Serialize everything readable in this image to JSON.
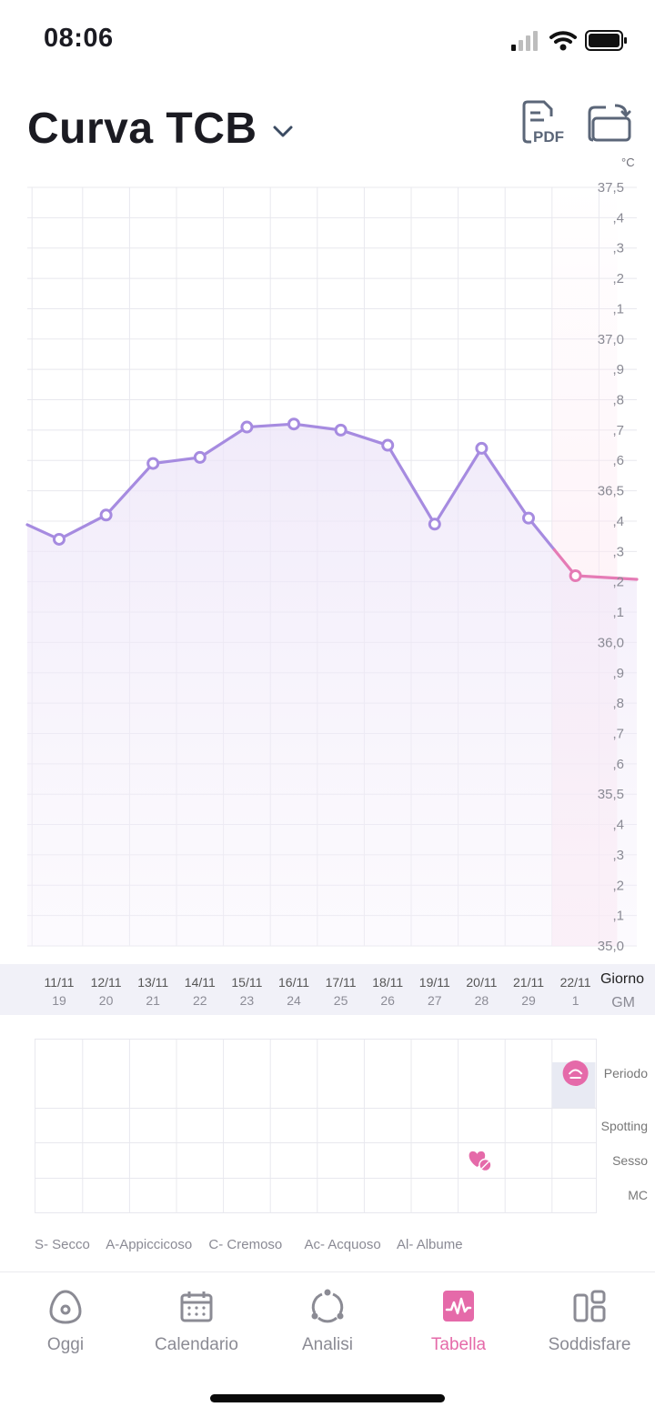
{
  "status": {
    "time": "08:06"
  },
  "header": {
    "title": "Curva TCB"
  },
  "toolbar": {
    "pdf_label": "PDF",
    "unit": "°C"
  },
  "colors": {
    "line": "#a68be0",
    "line_pink": "#e57bb5",
    "accent": "#e56aa9",
    "grid": "#e8e8ee"
  },
  "chart_data": {
    "type": "line",
    "title": "",
    "ylabel": "°C",
    "ylim": [
      35.0,
      37.5
    ],
    "y_ticks": [
      {
        "v": 37.5,
        "t": "37,5"
      },
      {
        "v": 37.4,
        "t": ",4"
      },
      {
        "v": 37.3,
        "t": ",3"
      },
      {
        "v": 37.2,
        "t": ",2"
      },
      {
        "v": 37.1,
        "t": ",1"
      },
      {
        "v": 37.0,
        "t": "37,0"
      },
      {
        "v": 36.9,
        "t": ",9"
      },
      {
        "v": 36.8,
        "t": ",8"
      },
      {
        "v": 36.7,
        "t": ",7"
      },
      {
        "v": 36.6,
        "t": ",6"
      },
      {
        "v": 36.5,
        "t": "36,5"
      },
      {
        "v": 36.4,
        "t": ",4"
      },
      {
        "v": 36.3,
        "t": ",3"
      },
      {
        "v": 36.2,
        "t": ",2"
      },
      {
        "v": 36.1,
        "t": ",1"
      },
      {
        "v": 36.0,
        "t": "36,0"
      },
      {
        "v": 35.9,
        "t": ",9"
      },
      {
        "v": 35.8,
        "t": ",8"
      },
      {
        "v": 35.7,
        "t": ",7"
      },
      {
        "v": 35.6,
        "t": ",6"
      },
      {
        "v": 35.5,
        "t": "35,5"
      },
      {
        "v": 35.4,
        "t": ",4"
      },
      {
        "v": 35.3,
        "t": ",3"
      },
      {
        "v": 35.2,
        "t": ",2"
      },
      {
        "v": 35.1,
        "t": ",1"
      },
      {
        "v": 35.0,
        "t": "35,0"
      }
    ],
    "categories": [
      "11/11",
      "12/11",
      "13/11",
      "14/11",
      "15/11",
      "16/11",
      "17/11",
      "18/11",
      "19/11",
      "20/11",
      "21/11",
      "22/11"
    ],
    "cycle_days": [
      "19",
      "20",
      "21",
      "22",
      "23",
      "24",
      "25",
      "26",
      "27",
      "28",
      "29",
      "1"
    ],
    "series": [
      {
        "values": [
          36.34,
          36.42,
          36.59,
          36.61,
          36.71,
          36.72,
          36.7,
          36.65,
          36.39,
          36.64,
          36.41,
          36.22
        ]
      }
    ],
    "x_axis_label": "Giorno",
    "cycle_axis_label": "GM",
    "grid": true
  },
  "tracking": {
    "rows": [
      "Periodo",
      "Spotting",
      "Sesso",
      "MC"
    ],
    "period_day_index": 11,
    "sex_day_index": 9
  },
  "mucus_legend": [
    "S- Secco",
    "A-Appiccicoso",
    "C- Cremoso",
    "Ac- Acquoso",
    "Al- Albume"
  ],
  "nav": {
    "items": [
      {
        "label": "Oggi",
        "icon": "egg-icon"
      },
      {
        "label": "Calendario",
        "icon": "calendar-icon"
      },
      {
        "label": "Analisi",
        "icon": "cycle-icon"
      },
      {
        "label": "Tabella",
        "icon": "chart-icon",
        "active": true
      },
      {
        "label": "Soddisfare",
        "icon": "widgets-icon"
      }
    ]
  }
}
